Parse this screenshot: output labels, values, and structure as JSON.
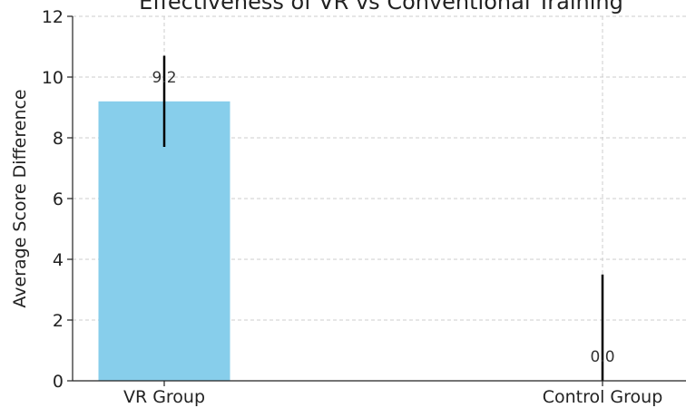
{
  "chart_data": {
    "type": "bar",
    "title": "Effectiveness of VR vs Conventional Training",
    "ylabel": "Average Score Difference",
    "xlabel": "",
    "categories": [
      "VR Group",
      "Control Group"
    ],
    "values": [
      9.2,
      0.0
    ],
    "value_labels": [
      "9.2",
      "0.0"
    ],
    "error_bars": [
      1.5,
      3.5
    ],
    "ylim": [
      0,
      12
    ],
    "yticks": [
      0,
      2,
      4,
      6,
      8,
      10,
      12
    ],
    "ytick_labels": [
      "0",
      "2",
      "4",
      "6",
      "8",
      "10",
      "12"
    ],
    "grid": true,
    "colors": {
      "bar": "#87ceeb",
      "error": "#000000",
      "grid": "#cccccc"
    }
  }
}
